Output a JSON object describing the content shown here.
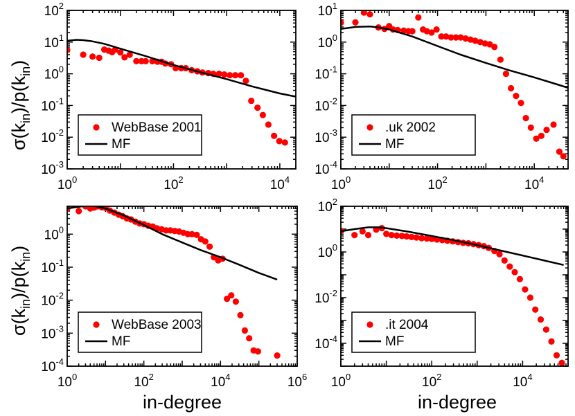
{
  "colors": {
    "points": "#ff0000",
    "line": "#000000",
    "frame": "#000000",
    "background": "#ffffff"
  },
  "ylabel_parts": {
    "sigma": "σ(k",
    "sub_in": "in",
    "mid": ")/",
    "p": "p",
    "paren_k": "(k",
    "close": ")"
  },
  "xlabel": "in-degree",
  "chart_data": [
    {
      "type": "scatter",
      "title": "",
      "xlabel": "in-degree",
      "ylabel": "σ(k_in)/p̄(k_in)",
      "xscale": "log",
      "yscale": "log",
      "xlim": [
        1,
        20000
      ],
      "ylim": [
        0.001,
        100
      ],
      "legend_position": "bottom-left",
      "xticks": [
        {
          "base": "10",
          "exp": "0"
        },
        {
          "base": "10",
          "exp": "2"
        },
        {
          "base": "10",
          "exp": "4"
        }
      ],
      "yticks": [
        {
          "base": "10",
          "exp": "-3"
        },
        {
          "base": "10",
          "exp": "-2"
        },
        {
          "base": "10",
          "exp": "-1"
        },
        {
          "base": "10",
          "exp": "0"
        },
        {
          "base": "10",
          "exp": "1"
        },
        {
          "base": "10",
          "exp": "2"
        }
      ],
      "series": [
        {
          "name": "WebBase 2001",
          "type": "scatter",
          "x": [
            1,
            2,
            3,
            4,
            5,
            6,
            7,
            8,
            10,
            12,
            15,
            20,
            25,
            30,
            40,
            50,
            60,
            70,
            90,
            110,
            140,
            170,
            220,
            280,
            350,
            450,
            560,
            720,
            900,
            1150,
            1450,
            1850,
            2300,
            2900,
            3800,
            4800,
            6100,
            7800,
            9800,
            12500
          ],
          "y": [
            5.6,
            4.0,
            3.5,
            3.2,
            5.8,
            5.4,
            4.8,
            5.8,
            4.7,
            3.3,
            4.0,
            2.5,
            2.5,
            2.5,
            2.5,
            2.4,
            2.4,
            2.1,
            2.0,
            1.5,
            1.5,
            1.5,
            1.3,
            1.2,
            1.1,
            1.05,
            1.0,
            1.0,
            0.95,
            0.9,
            0.9,
            0.9,
            0.6,
            0.14,
            0.085,
            0.05,
            0.025,
            0.011,
            0.0075,
            0.0068
          ]
        },
        {
          "name": "MF",
          "type": "line",
          "x": [
            1,
            1.5,
            2,
            3,
            5,
            10,
            30,
            100,
            300,
            1000,
            3000,
            10000,
            20000
          ],
          "y": [
            11,
            11.8,
            11.5,
            10.5,
            8.8,
            6.2,
            3.6,
            1.9,
            1.15,
            0.68,
            0.4,
            0.24,
            0.19
          ]
        }
      ]
    },
    {
      "type": "scatter",
      "title": "",
      "xlabel": "in-degree",
      "ylabel": "σ(k_in)/p̄(k_in)",
      "xscale": "log",
      "yscale": "log",
      "xlim": [
        1,
        50000
      ],
      "ylim": [
        0.0001,
        10
      ],
      "legend_position": "bottom-left",
      "xticks": [
        {
          "base": "10",
          "exp": "0"
        },
        {
          "base": "10",
          "exp": "2"
        },
        {
          "base": "10",
          "exp": "4"
        }
      ],
      "yticks": [
        {
          "base": "10",
          "exp": "-4"
        },
        {
          "base": "10",
          "exp": "-3"
        },
        {
          "base": "10",
          "exp": "-2"
        },
        {
          "base": "10",
          "exp": "-1"
        },
        {
          "base": "10",
          "exp": "0"
        },
        {
          "base": "10",
          "exp": "1"
        }
      ],
      "series": [
        {
          "name": ".uk 2002",
          "type": "scatter",
          "x": [
            1,
            2,
            3,
            4,
            6,
            8,
            10,
            12,
            15,
            20,
            25,
            30,
            40,
            50,
            60,
            75,
            95,
            120,
            150,
            190,
            240,
            300,
            380,
            480,
            600,
            760,
            960,
            1200,
            1500,
            2000,
            2600,
            3300,
            4200,
            5300,
            6700,
            8500,
            11000,
            14000,
            18000,
            25000,
            33000,
            40000
          ],
          "y": [
            4.1,
            4.2,
            8.5,
            7.5,
            2.9,
            2.6,
            3.2,
            2.5,
            2.4,
            2.3,
            2.2,
            2.2,
            6.0,
            2.5,
            2.2,
            2.0,
            2.5,
            1.5,
            1.5,
            1.4,
            1.4,
            1.4,
            1.3,
            1.2,
            1.1,
            1.0,
            0.9,
            0.85,
            0.7,
            0.28,
            0.1,
            0.035,
            0.02,
            0.012,
            0.004,
            0.002,
            0.0009,
            0.0011,
            0.0017,
            0.0025,
            0.00035,
            0.00025
          ]
        },
        {
          "name": "MF",
          "type": "line",
          "x": [
            1,
            2,
            4,
            6,
            10,
            30,
            100,
            300,
            1000,
            3000,
            10000,
            30000,
            50000
          ],
          "y": [
            2.6,
            3.0,
            3.1,
            2.9,
            2.5,
            1.5,
            0.75,
            0.4,
            0.22,
            0.13,
            0.077,
            0.046,
            0.036
          ]
        }
      ]
    },
    {
      "type": "scatter",
      "title": "",
      "xlabel": "in-degree",
      "ylabel": "σ(k_in)/p̄(k_in)",
      "xscale": "log",
      "yscale": "log",
      "xlim": [
        1,
        1000000
      ],
      "ylim": [
        0.0001,
        7
      ],
      "legend_position": "bottom-left",
      "xticks": [
        {
          "base": "10",
          "exp": "0"
        },
        {
          "base": "10",
          "exp": "2"
        },
        {
          "base": "10",
          "exp": "4"
        },
        {
          "base": "10",
          "exp": "6"
        }
      ],
      "yticks": [
        {
          "base": "10",
          "exp": "-4"
        },
        {
          "base": "10",
          "exp": "-3"
        },
        {
          "base": "10",
          "exp": "-2"
        },
        {
          "base": "10",
          "exp": "-1"
        },
        {
          "base": "10",
          "exp": "0"
        }
      ],
      "series": [
        {
          "name": "WebBase 2003",
          "type": "scatter",
          "x": [
            1,
            2,
            3,
            4,
            5,
            6,
            8,
            10,
            13,
            17,
            22,
            28,
            36,
            46,
            60,
            78,
            100,
            130,
            170,
            220,
            290,
            380,
            490,
            640,
            830,
            1080,
            1400,
            1800,
            2400,
            3100,
            4000,
            5200,
            6700,
            8700,
            11300,
            14700,
            19000,
            25000,
            33000,
            43000,
            56000,
            73000,
            95000,
            300000
          ],
          "y": [
            5.8,
            5.0,
            7.0,
            6.0,
            6.4,
            6.9,
            6.5,
            6.3,
            5.2,
            4.5,
            3.9,
            3.5,
            3.0,
            2.8,
            2.4,
            2.1,
            2.0,
            1.8,
            1.7,
            1.5,
            1.4,
            1.3,
            1.3,
            1.25,
            1.2,
            1.1,
            1.0,
            1.0,
            0.95,
            0.7,
            0.6,
            0.42,
            0.2,
            0.16,
            0.18,
            0.011,
            0.014,
            0.009,
            0.0035,
            0.0012,
            0.0007,
            0.0003,
            0.00028,
            0.00021
          ]
        },
        {
          "name": "MF",
          "type": "line",
          "x": [
            1,
            3,
            5,
            10,
            30,
            100,
            300,
            1000,
            3000,
            10000,
            30000,
            100000,
            300000
          ],
          "y": [
            6.0,
            7.2,
            7.2,
            6.0,
            3.7,
            1.9,
            1.0,
            0.56,
            0.33,
            0.2,
            0.12,
            0.067,
            0.042
          ]
        }
      ]
    },
    {
      "type": "scatter",
      "title": "",
      "xlabel": "in-degree",
      "ylabel": "σ(k_in)/p̄(k_in)",
      "xscale": "log",
      "yscale": "log",
      "xlim": [
        1,
        100000
      ],
      "ylim": [
        1e-05,
        100
      ],
      "legend_position": "bottom-left",
      "xticks": [
        {
          "base": "10",
          "exp": "0"
        },
        {
          "base": "10",
          "exp": "2"
        },
        {
          "base": "10",
          "exp": "4"
        }
      ],
      "yticks": [
        {
          "base": "10",
          "exp": "-4"
        },
        {
          "base": "10",
          "exp": "-2"
        },
        {
          "base": "10",
          "exp": "0"
        },
        {
          "base": "10",
          "exp": "2"
        }
      ],
      "series": [
        {
          "name": ".it 2004",
          "type": "scatter",
          "x": [
            1,
            2,
            3,
            4,
            6,
            8,
            10,
            13,
            17,
            22,
            28,
            36,
            46,
            60,
            78,
            100,
            130,
            170,
            220,
            290,
            380,
            490,
            640,
            830,
            1080,
            1400,
            1800,
            2400,
            3100,
            4000,
            5200,
            6700,
            8700,
            11300,
            14700,
            19000,
            25000,
            33000,
            43000,
            56000,
            73000
          ],
          "y": [
            8.5,
            5.5,
            8.0,
            5.5,
            9.5,
            11,
            6.2,
            5.5,
            5.2,
            5.0,
            4.8,
            4.5,
            4.3,
            4.0,
            3.9,
            3.7,
            3.5,
            3.3,
            3.1,
            2.9,
            2.7,
            2.5,
            2.4,
            2.2,
            2.0,
            1.8,
            1.5,
            1.1,
            0.8,
            0.42,
            0.23,
            0.13,
            0.065,
            0.023,
            0.01,
            0.003,
            0.0011,
            0.0004,
            0.00012,
            3e-05,
            1.4e-05
          ]
        },
        {
          "name": "MF",
          "type": "line",
          "x": [
            1,
            2,
            4,
            7,
            10,
            30,
            100,
            300,
            1000,
            3000,
            10000,
            30000,
            80000
          ],
          "y": [
            8.0,
            10,
            12,
            12,
            11,
            7.8,
            5.0,
            3.3,
            2.0,
            1.2,
            0.7,
            0.42,
            0.27
          ]
        }
      ]
    }
  ]
}
